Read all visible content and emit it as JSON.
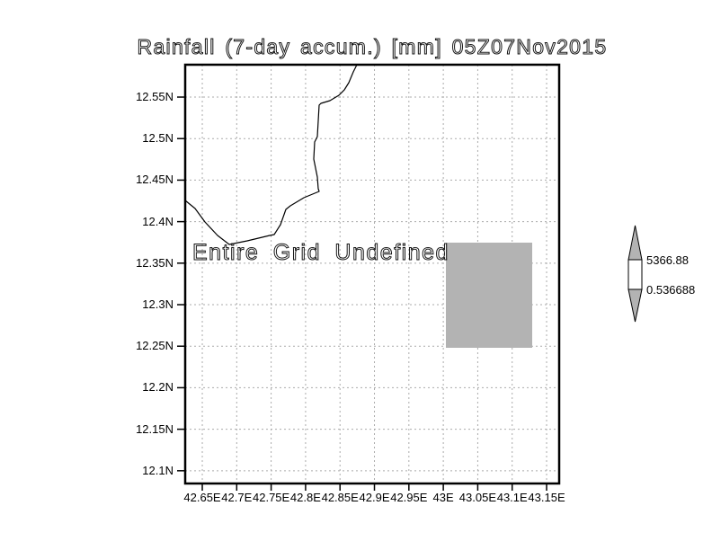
{
  "title": "Rainfall (7-day accum.) [mm] 05Z07Nov2015",
  "plot": {
    "overlay_message": "Entire Grid Undefined",
    "y_ticks": [
      "12.55N",
      "12.5N",
      "12.45N",
      "12.4N",
      "12.35N",
      "12.3N",
      "12.25N",
      "12.2N",
      "12.15N",
      "12.1N"
    ],
    "x_ticks": [
      "42.65E",
      "42.7E",
      "42.75E",
      "42.8E",
      "42.85E",
      "42.9E",
      "42.95E",
      "43E",
      "43.05E",
      "43.1E",
      "43.15E"
    ],
    "grid_color": "#ababab",
    "shaded_region_color": "#b3b3b3",
    "coastline_color": "#000000"
  },
  "colorbar": {
    "upper_label": "5366.88",
    "lower_label": "0.536688",
    "arrow_fill": "#b3b3b3",
    "box_fill": "#ffffff"
  },
  "chart_data": {
    "type": "heatmap",
    "title": "Rainfall (7-day accum.) [mm] 05Z07Nov2015",
    "variable": "Rainfall (7-day accum.)",
    "units": "mm",
    "valid_time": "05Z07Nov2015",
    "x_tick_labels": [
      "42.65E",
      "42.7E",
      "42.75E",
      "42.8E",
      "42.85E",
      "42.9E",
      "42.95E",
      "43E",
      "43.05E",
      "43.1E",
      "43.15E"
    ],
    "y_tick_labels": [
      "12.55N",
      "12.5N",
      "12.45N",
      "12.4N",
      "12.35N",
      "12.3N",
      "12.25N",
      "12.2N",
      "12.15N",
      "12.1N"
    ],
    "xlim_lon_e": [
      42.63,
      43.17
    ],
    "ylim_lat_n": [
      12.08,
      12.59
    ],
    "grid": true,
    "status_annotation": "Entire Grid Undefined",
    "colorbar": {
      "min": 0.536688,
      "max": 5366.88,
      "position": "right"
    },
    "shaded_cells": [
      {
        "lon_e": [
          43.0,
          43.125
        ],
        "lat_n": [
          12.25,
          12.375
        ],
        "color": "#b3b3b3"
      }
    ],
    "coastline": true
  }
}
